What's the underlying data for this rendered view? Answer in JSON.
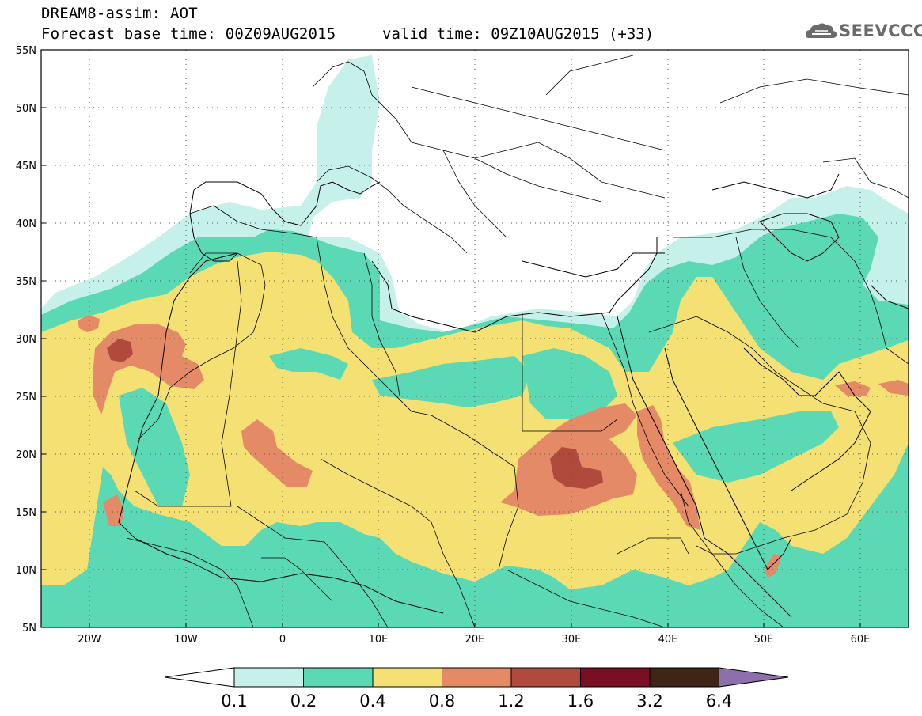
{
  "header": {
    "title_line1": "DREAM8-assim: AOT",
    "title_line2": "Forecast base time: 00Z09AUG2015",
    "valid_time": "valid time: 09Z10AUG2015 (+33)",
    "logo_text": "SEEVCCC",
    "logo_icon": "cloud-icon"
  },
  "map": {
    "lon_range": [
      -25,
      65
    ],
    "lat_range": [
      5,
      55
    ],
    "lat_labels": [
      "55N",
      "50N",
      "45N",
      "40N",
      "35N",
      "30N",
      "25N",
      "20N",
      "15N",
      "10N",
      "5N"
    ],
    "lon_labels": [
      "20W",
      "10W",
      "0",
      "10E",
      "20E",
      "30E",
      "40E",
      "50E",
      "60E"
    ],
    "ocean_color": "#ffffff",
    "border_color": "#000000",
    "grid": "dotted"
  },
  "colorbar": {
    "labels": [
      "0.1",
      "0.2",
      "0.4",
      "0.8",
      "1.2",
      "1.6",
      "3.2",
      "6.4"
    ],
    "colors": [
      "#c6f0ea",
      "#5ad9b4",
      "#f5e173",
      "#e58a66",
      "#b04a3c",
      "#7a0e24",
      "#3e2516",
      "#8e6fad"
    ],
    "under_color": "#ffffff"
  },
  "legend": {
    "bins": [
      {
        "range": "0.1-0.2",
        "color": "#c6f0ea"
      },
      {
        "range": "0.2-0.4",
        "color": "#5ad9b4"
      },
      {
        "range": "0.4-0.8",
        "color": "#f5e173"
      },
      {
        "range": "0.8-1.2",
        "color": "#e58a66"
      },
      {
        "range": "1.2-1.6",
        "color": "#b04a3c"
      }
    ]
  }
}
